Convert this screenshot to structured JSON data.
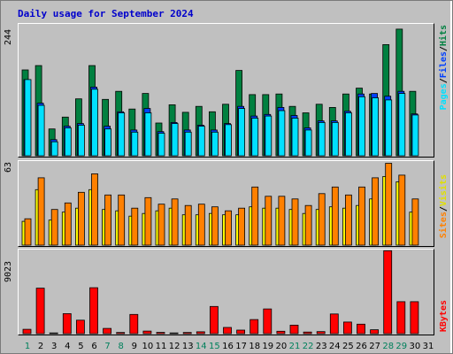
{
  "title": "Daily usage for September 2024",
  "colors": {
    "hits": "#008040",
    "files": "#0040ff",
    "pages": "#00e0ff",
    "visits": "#ffff00",
    "sites": "#ff8000",
    "kbytes": "#ff0000",
    "weekend_day": "#00805c",
    "weekday_day": "#000000"
  },
  "labels": {
    "hits_max": "244",
    "sites_max": "63",
    "kbytes_max": "9023",
    "pages": "Pages",
    "files": "Files",
    "hits": "Hits",
    "sites": "Sites",
    "visits": "Visits",
    "kbytes": "KBytes",
    "sep": "/"
  },
  "chart_data": {
    "type": "bar",
    "categories": [
      "1",
      "2",
      "3",
      "4",
      "5",
      "6",
      "7",
      "8",
      "9",
      "10",
      "11",
      "12",
      "13",
      "14",
      "15",
      "16",
      "17",
      "18",
      "19",
      "20",
      "21",
      "22",
      "23",
      "24",
      "25",
      "26",
      "27",
      "28",
      "29",
      "30",
      "31"
    ],
    "weekend_days": [
      "1",
      "7",
      "8",
      "14",
      "15",
      "21",
      "22",
      "28",
      "29"
    ],
    "ylim_hits": [
      0,
      244
    ],
    "ylim_sites": [
      0,
      63
    ],
    "ylim_kbytes": [
      0,
      9023
    ],
    "series": [
      {
        "name": "Hits",
        "panel": "hits",
        "values": [
          160,
          168,
          50,
          72,
          106,
          168,
          105,
          120,
          87,
          116,
          61,
          95,
          81,
          92,
          82,
          96,
          159,
          114,
          114,
          115,
          92,
          80,
          96,
          90,
          115,
          126,
          115,
          207,
          236,
          120,
          0
        ]
      },
      {
        "name": "Files",
        "panel": "hits",
        "values": [
          142,
          98,
          30,
          55,
          60,
          128,
          55,
          82,
          48,
          88,
          45,
          62,
          48,
          57,
          48,
          60,
          92,
          74,
          77,
          90,
          75,
          52,
          65,
          65,
          83,
          115,
          116,
          111,
          120,
          78,
          0
        ]
      },
      {
        "name": "Pages",
        "panel": "hits",
        "values": [
          142,
          94,
          26,
          52,
          57,
          124,
          50,
          80,
          44,
          80,
          42,
          60,
          44,
          55,
          44,
          58,
          88,
          70,
          74,
          84,
          70,
          48,
          62,
          62,
          80,
          110,
          108,
          104,
          116,
          76,
          0
        ]
      },
      {
        "name": "Visits",
        "panel": "sites",
        "values": [
          18,
          42,
          19,
          25,
          28,
          42,
          27,
          26,
          22,
          24,
          26,
          28,
          23,
          23,
          24,
          23,
          23,
          29,
          28,
          28,
          27,
          24,
          27,
          29,
          28,
          30,
          35,
          52,
          48,
          25,
          0
        ]
      },
      {
        "name": "Sites",
        "panel": "sites",
        "values": [
          20,
          51,
          27,
          32,
          40,
          54,
          38,
          38,
          28,
          36,
          31,
          35,
          30,
          31,
          29,
          26,
          28,
          44,
          37,
          37,
          35,
          30,
          39,
          44,
          38,
          44,
          51,
          62,
          53,
          35,
          0
        ]
      },
      {
        "name": "KBytes",
        "panel": "kbytes",
        "values": [
          470,
          4930,
          80,
          2170,
          1460,
          4980,
          570,
          120,
          2080,
          280,
          130,
          80,
          120,
          200,
          2950,
          670,
          380,
          1530,
          2680,
          260,
          920,
          170,
          220,
          2130,
          1260,
          1030,
          420,
          8990,
          3470,
          3470,
          0
        ]
      }
    ]
  }
}
